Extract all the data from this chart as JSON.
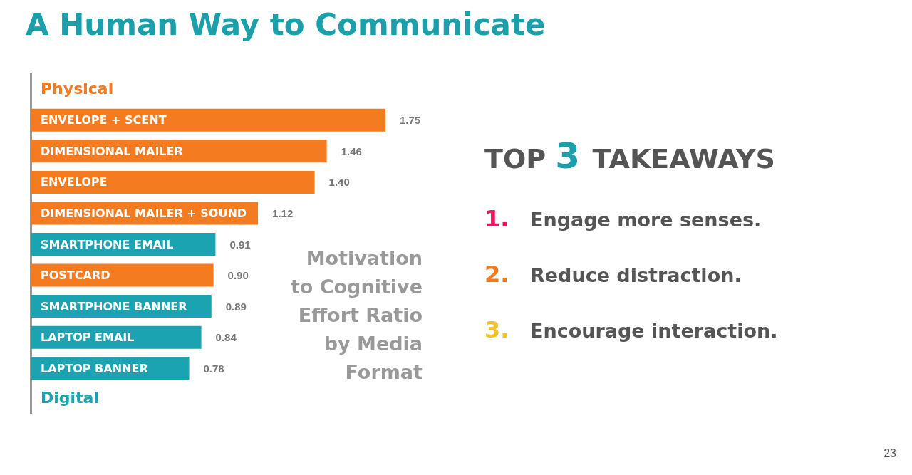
{
  "chart_data": {
    "type": "bar",
    "orientation": "horizontal",
    "stacked": true,
    "title": "A Human Way to Communicate",
    "subtitle": "Motivation to Cognitive Effort Ratio by Media Format",
    "categories": [
      "ENVELOPE + SCENT",
      "DIMENSIONAL MAILER",
      "ENVELOPE",
      "DIMENSIONAL MAILER + SOUND",
      "SMARTPHONE EMAIL",
      "POSTCARD",
      "SMARTPHONE BANNER",
      "LAPTOP EMAIL",
      "LAPTOP BANNER"
    ],
    "series": [
      {
        "name": "Physical",
        "color": "#f47b20",
        "values": [
          1.75,
          1.46,
          1.4,
          1.12,
          null,
          0.9,
          null,
          null,
          null
        ],
        "value_labels": [
          "1.75",
          "1.46",
          "1.40",
          "1.12",
          null,
          "0.90",
          null,
          null,
          null
        ]
      },
      {
        "name": "Digital",
        "color": "#1ba3b1",
        "values": [
          null,
          null,
          null,
          null,
          0.91,
          null,
          0.89,
          0.84,
          0.78
        ],
        "value_labels": [
          null,
          null,
          null,
          null,
          "0.91",
          null,
          "0.89",
          "0.84",
          "0.78"
        ]
      }
    ],
    "annotations": [
      "TOP 3 TAKEAWAYS",
      "1. Engage more senses.",
      "2. Reduce distraction.",
      "3. Encourage interaction.",
      "23"
    ]
  }
}
